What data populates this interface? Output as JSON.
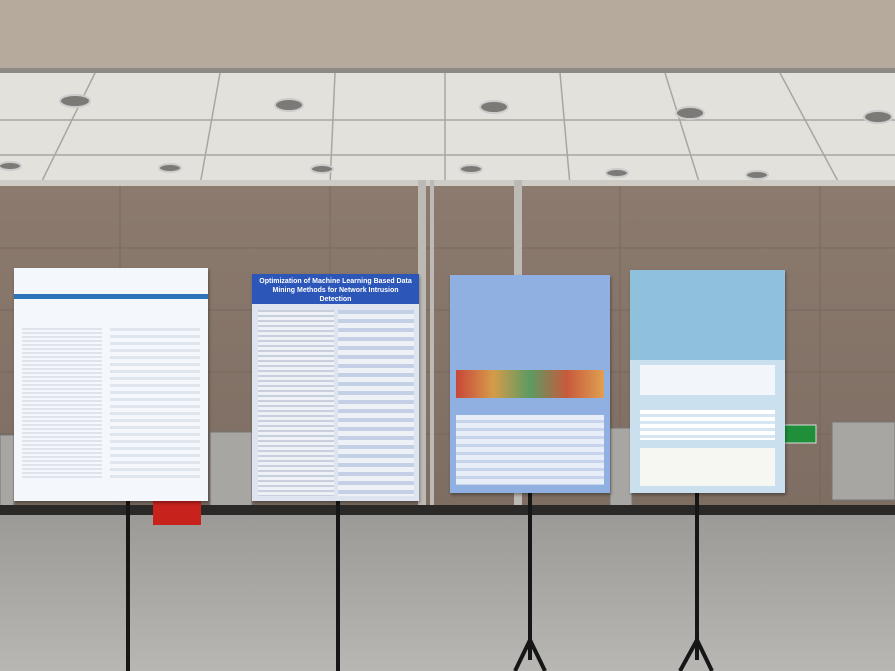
{
  "posters": [
    {
      "title": "Optimization of Machine Learning Based Data Mining Methods for Network Intrusion Detection"
    }
  ]
}
